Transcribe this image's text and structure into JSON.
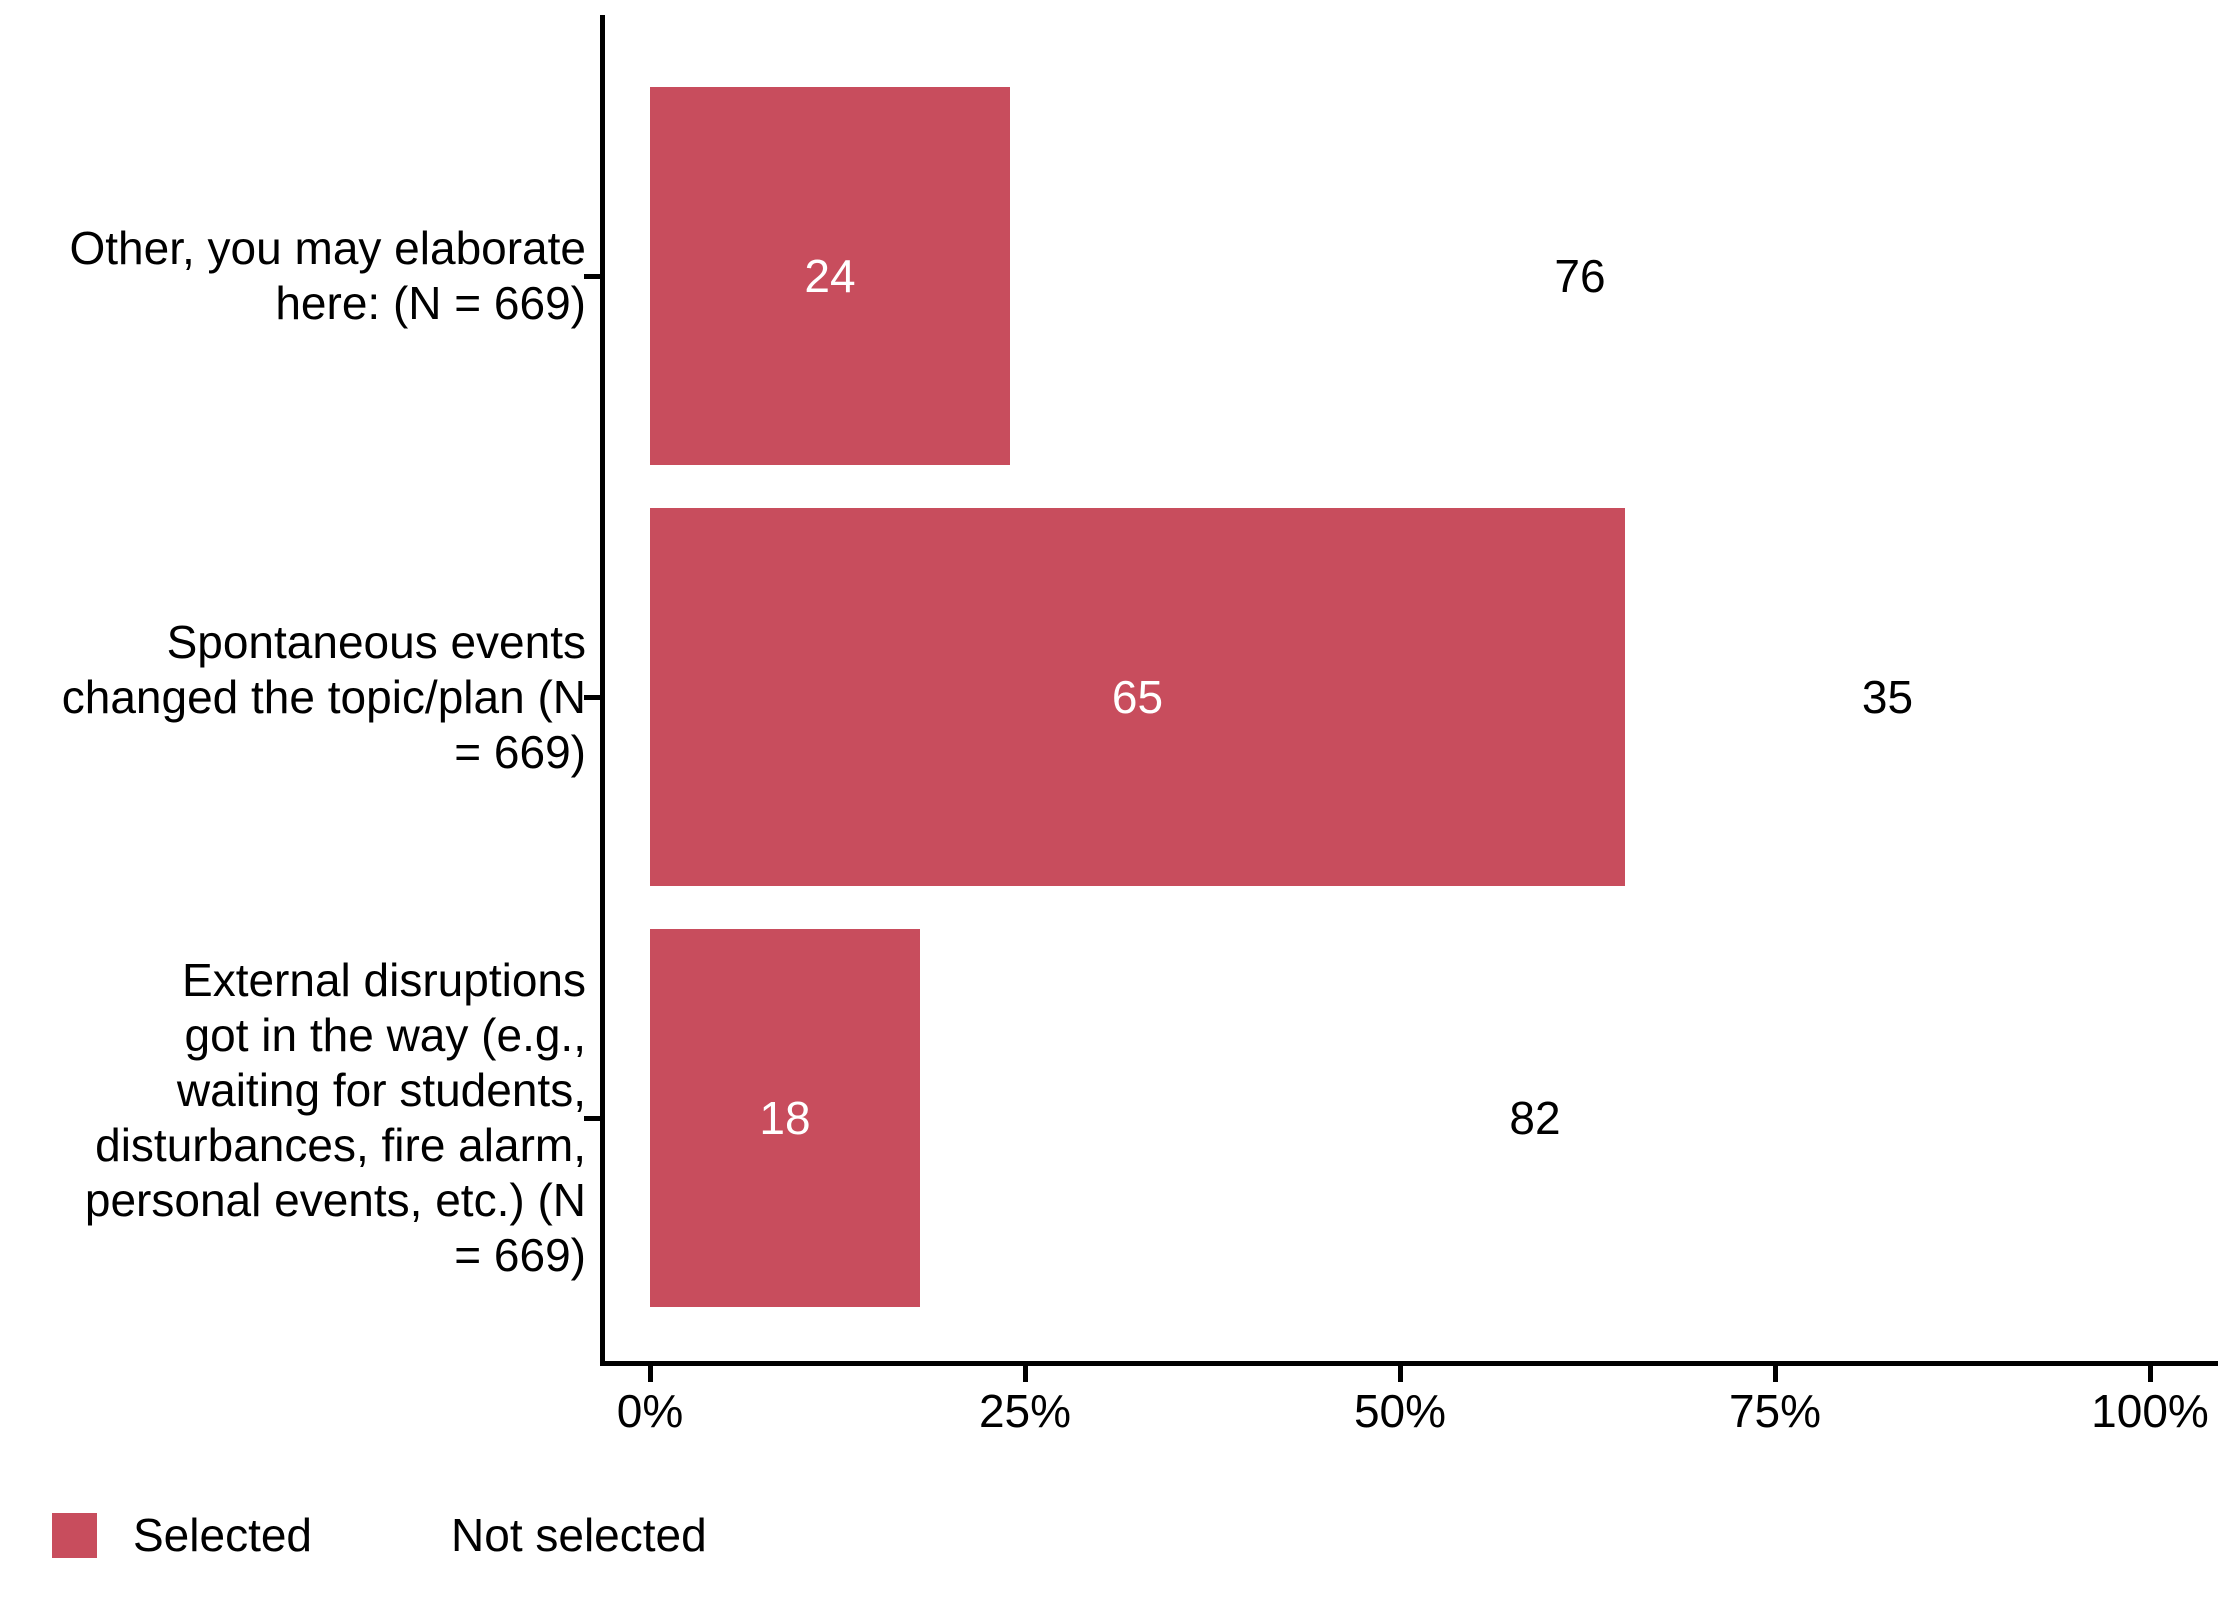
{
  "chart_data": {
    "type": "bar",
    "orientation": "horizontal",
    "stacked": true,
    "title": "",
    "xlabel": "",
    "ylabel": "",
    "xlim": [
      0,
      100
    ],
    "grid": false,
    "legend_position": "bottom-left",
    "categories": [
      "Other, you may elaborate\nhere: (N = 669)",
      "Spontaneous events\nchanged the topic/plan (N\n= 669)",
      "External disruptions\ngot in the way (e.g.,\nwaiting for students,\ndisturbances, fire alarm,\npersonal events, etc.) (N\n= 669)"
    ],
    "rows": [
      {
        "label": "Other, you may elaborate\nhere: (N = 669)",
        "selected": 24,
        "not_selected": 76
      },
      {
        "label": "Spontaneous events\nchanged the topic/plan (N\n= 669)",
        "selected": 65,
        "not_selected": 35
      },
      {
        "label": "External disruptions\ngot in the way (e.g.,\nwaiting for students,\ndisturbances, fire alarm,\npersonal events, etc.) (N\n= 669)",
        "selected": 18,
        "not_selected": 82
      }
    ],
    "series": [
      {
        "name": "Selected",
        "values": [
          24,
          65,
          18
        ]
      },
      {
        "name": "Not selected",
        "values": [
          76,
          35,
          82
        ]
      }
    ],
    "x_tick_values": [
      0,
      25,
      50,
      75,
      100
    ],
    "x_tick_labels": [
      "0%",
      "25%",
      "50%",
      "75%",
      "100%"
    ],
    "legend": [
      {
        "label": "Selected",
        "color": "#C84D5D"
      },
      {
        "label": "Not selected",
        "color": "#FFFFFF"
      }
    ],
    "colors": {
      "selected": "#C84D5D",
      "not_selected": "#FFFFFF",
      "bar_label_on_fill": "#FFFFFF",
      "bar_label_on_white": "#000000",
      "axis": "#000000",
      "text": "#000000"
    }
  }
}
